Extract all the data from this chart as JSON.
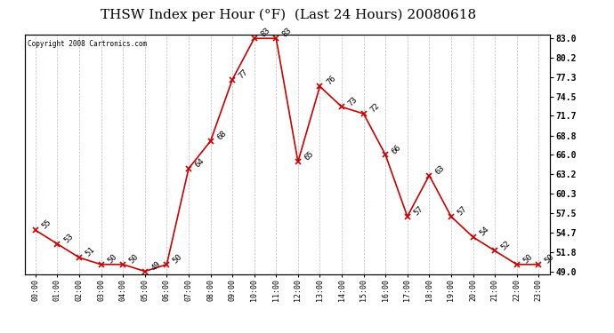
{
  "title": "THSW Index per Hour (°F)  (Last 24 Hours) 20080618",
  "copyright": "Copyright 2008 Cartronics.com",
  "hours": [
    0,
    1,
    2,
    3,
    4,
    5,
    6,
    7,
    8,
    9,
    10,
    11,
    12,
    13,
    14,
    15,
    16,
    17,
    18,
    19,
    20,
    21,
    22,
    23
  ],
  "x_labels": [
    "00:00",
    "01:00",
    "02:00",
    "03:00",
    "04:00",
    "05:00",
    "06:00",
    "07:00",
    "08:00",
    "09:00",
    "10:00",
    "11:00",
    "12:00",
    "13:00",
    "14:00",
    "15:00",
    "16:00",
    "17:00",
    "18:00",
    "19:00",
    "20:00",
    "21:00",
    "22:00",
    "23:00"
  ],
  "values": [
    55,
    53,
    51,
    50,
    50,
    49,
    50,
    64,
    68,
    77,
    83,
    83,
    65,
    76,
    73,
    72,
    66,
    57,
    63,
    57,
    54,
    52,
    50,
    50
  ],
  "line_color": "#cc0000",
  "marker_color": "#cc0000",
  "bg_color": "#ffffff",
  "grid_color": "#bbbbbb",
  "title_fontsize": 11,
  "ylim": [
    49.0,
    83.0
  ],
  "yticks_right": [
    49.0,
    51.8,
    54.7,
    57.5,
    60.3,
    63.2,
    66.0,
    68.8,
    71.7,
    74.5,
    77.3,
    80.2,
    83.0
  ]
}
